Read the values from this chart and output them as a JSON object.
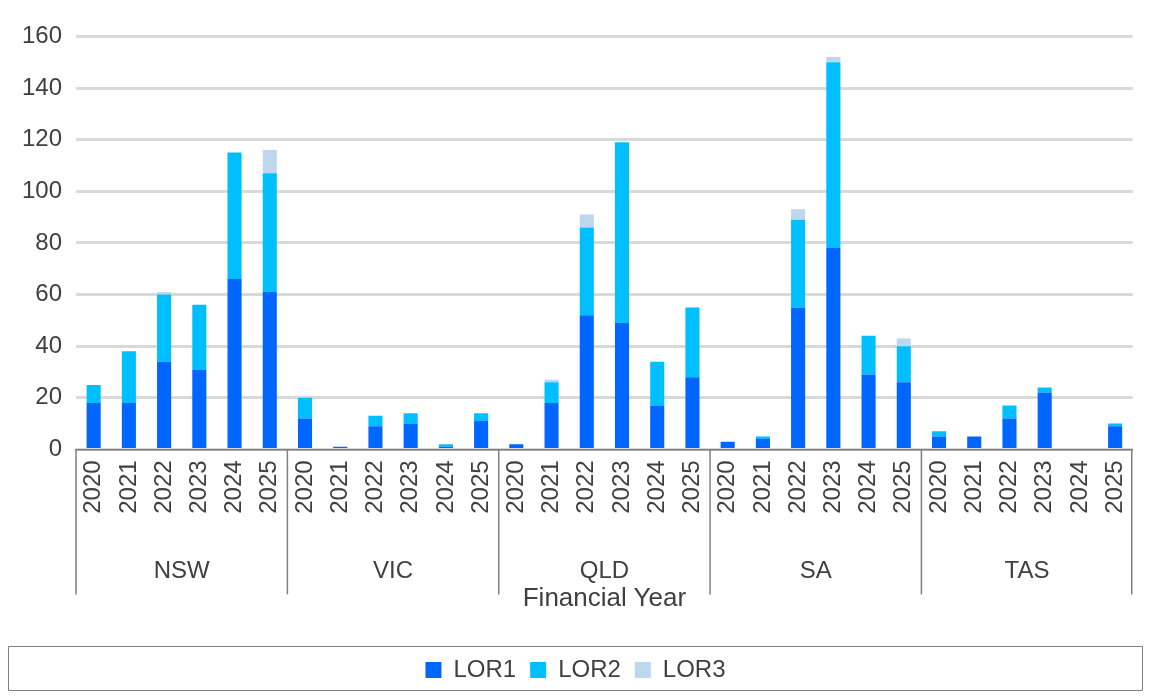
{
  "chart_data": {
    "type": "bar",
    "stacked": true,
    "xlabel": "Financial Year",
    "categories": [
      "2020",
      "2021",
      "2022",
      "2023",
      "2024",
      "2025",
      "2020",
      "2021",
      "2022",
      "2023",
      "2024",
      "2025",
      "2020",
      "2021",
      "2022",
      "2023",
      "2024",
      "2025",
      "2020",
      "2021",
      "2022",
      "2023",
      "2024",
      "2025",
      "2020",
      "2021",
      "2022",
      "2023",
      "2024",
      "2025"
    ],
    "annotations": [
      "NSW",
      "VIC",
      "QLD",
      "SA",
      "TAS"
    ],
    "series": [
      {
        "name": "LOR1",
        "color": "#0066ff",
        "values": [
          18,
          18,
          34,
          31,
          66,
          61,
          12,
          1,
          9,
          10,
          1,
          11,
          2,
          18,
          52,
          49,
          17,
          28,
          3,
          4,
          55,
          78,
          29,
          26,
          5,
          5,
          12,
          22,
          0,
          9
        ]
      },
      {
        "name": "LOR2",
        "color": "#00bfff",
        "values": [
          7,
          20,
          26,
          25,
          49,
          46,
          8,
          0,
          4,
          4,
          1,
          3,
          0,
          8,
          34,
          70,
          17,
          27,
          0,
          1,
          34,
          72,
          15,
          14,
          2,
          0,
          5,
          2,
          0,
          1
        ]
      },
      {
        "name": "LOR3",
        "color": "#bdd7ee",
        "values": [
          0,
          0,
          1,
          0,
          0,
          9,
          0,
          0,
          0,
          0,
          0,
          0,
          0,
          1,
          5,
          0,
          0,
          0,
          0,
          0,
          4,
          2,
          0,
          3,
          0,
          0,
          0,
          0,
          0,
          0
        ]
      }
    ],
    "ylim": [
      0,
      160
    ],
    "yticks": [
      0,
      20,
      40,
      60,
      80,
      100,
      120,
      140,
      160
    ],
    "grid": "y",
    "legend": "bottom"
  }
}
